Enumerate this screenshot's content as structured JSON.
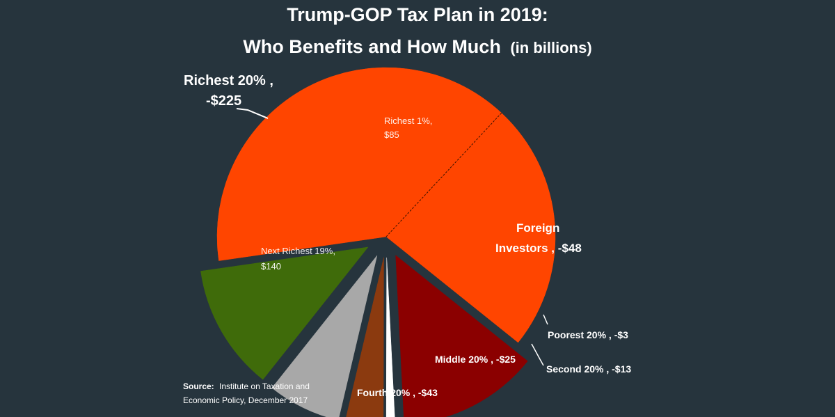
{
  "chart_data": {
    "type": "pie",
    "title": "Trump-GOP Tax Plan in 2019:",
    "subtitle": "Who Benefits and How Much",
    "subtitle_suffix": "(in billions)",
    "slices": [
      {
        "label": "Richest 1%,",
        "value_label": "$85",
        "value": 85,
        "color": "#ff4500",
        "group": "Richest 20%"
      },
      {
        "label": "Foreign Investors , -$48",
        "value": 48,
        "color": "#8b0000",
        "exploded": true
      },
      {
        "label": "Poorest 20% , -$3",
        "value": 3,
        "color": "#ffffff",
        "exploded": true
      },
      {
        "label": "Second 20% , -$13",
        "value": 13,
        "color": "#8b3a0f",
        "exploded": true
      },
      {
        "label": "Middle 20% , -$25",
        "value": 25,
        "color": "#a8a8a8",
        "exploded": true
      },
      {
        "label": "Fourth 20% , -$43",
        "value": 43,
        "color": "#3f6b0a",
        "exploded": true
      },
      {
        "label": "Next Richest 19%,",
        "value_label": "$140",
        "value": 140,
        "color": "#ff4500",
        "group": "Richest 20%"
      }
    ],
    "group_label": {
      "line1": "Richest 20% ,",
      "line2": "-$225"
    },
    "foreign_label": {
      "line1": "Foreign",
      "line2": "Investors , -$48"
    }
  },
  "source": {
    "prefix": "Source:",
    "line1": "Institute on Taxation and",
    "line2": "Economic Policy, December 2017"
  },
  "colors": {
    "background": "#26343d",
    "text": "#ffffff"
  }
}
